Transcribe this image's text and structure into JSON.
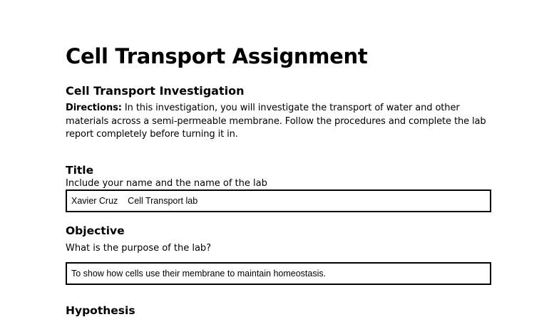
{
  "document": {
    "title": "Cell Transport Assignment",
    "subtitle": "Cell Transport Investigation",
    "directions_label": "Directions:",
    "directions_text": " In this investigation, you will investigate the transport of water and other materials across a semi-permeable membrane. Follow the procedures and complete the lab report completely before turning it in.",
    "sections": [
      {
        "heading": "Title",
        "prompt": "Include your name and the name of the lab",
        "answer": "Xavier Cruz    Cell Transport lab"
      },
      {
        "heading": "Objective",
        "prompt": "What is the purpose of the lab?",
        "answer": "To show how cells use their membrane to maintain homeostasis."
      },
      {
        "heading": "Hypothesis"
      }
    ]
  }
}
